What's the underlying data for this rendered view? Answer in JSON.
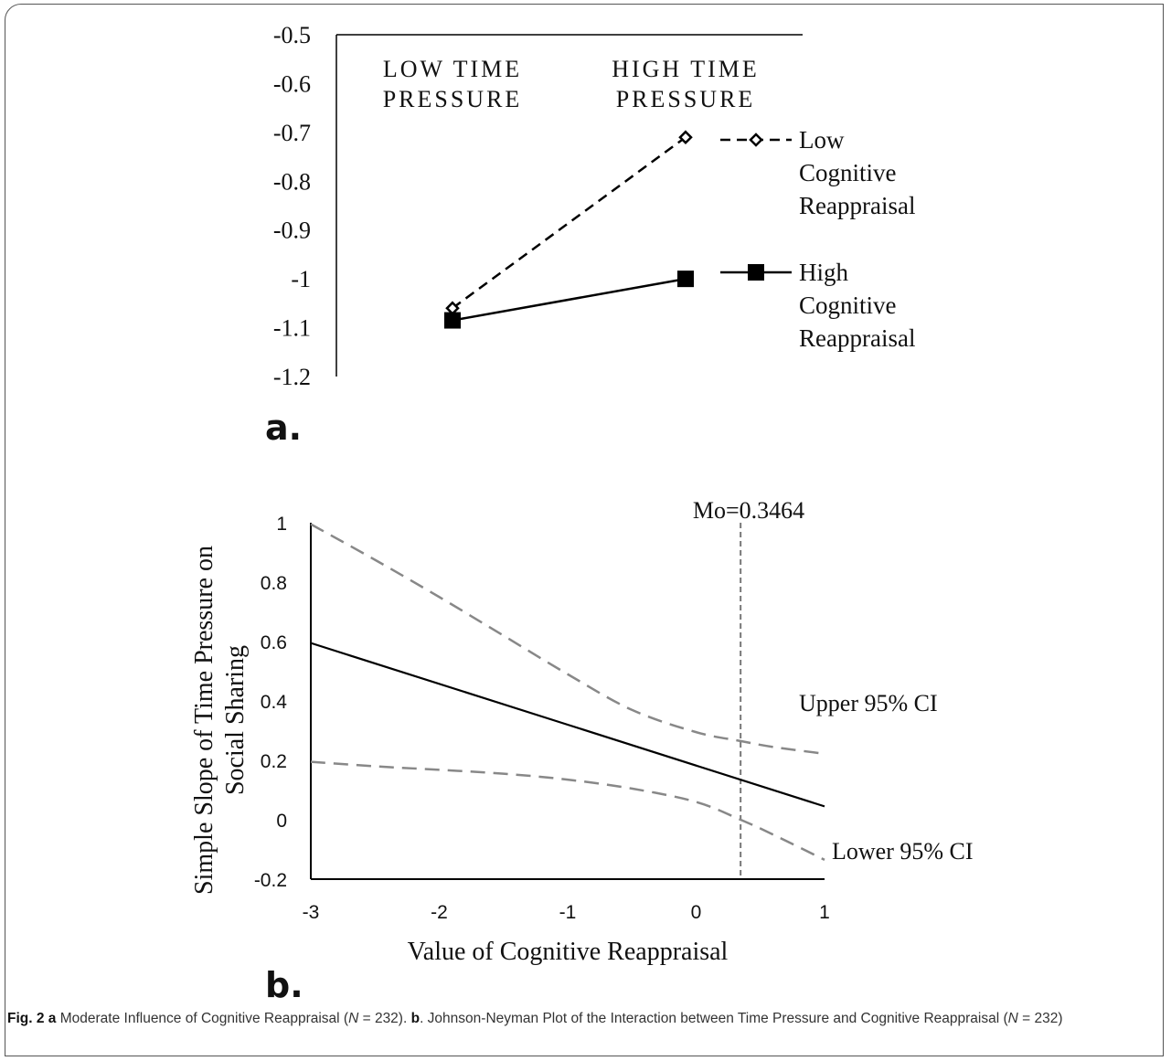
{
  "panels": {
    "a": "a.",
    "b": "b."
  },
  "caption": {
    "fig_label": "Fig. 2",
    "a_letter": "a",
    "a_text": " Moderate Influence of Cognitive Reappraisal (",
    "n_italic": "N",
    "n_value": " = 232). ",
    "b_letter": "b",
    "b_text": ". Johnson-Neyman Plot of the Interaction between Time Pressure and Cognitive Reappraisal (",
    "n_italic_2": "N",
    "n_value_2": " = 232)"
  },
  "chart_data": [
    {
      "type": "line",
      "panel": "a",
      "categories": [
        "LOW TIME PRESSURE",
        "HIGH TIME PRESSURE"
      ],
      "category_lines": [
        [
          "LOW TIME",
          "PRESSURE"
        ],
        [
          "HIGH TIME",
          "PRESSURE"
        ]
      ],
      "yticks": [
        "-0.5",
        "-0.6",
        "-0.7",
        "-0.8",
        "-0.9",
        "-1",
        "-1.1",
        "-1.2"
      ],
      "ylim": [
        -1.2,
        -0.5
      ],
      "y_inverted": true,
      "series": [
        {
          "name": "Low Cognitive Reappraisal",
          "name_lines": [
            "Low",
            "Cognitive",
            "Reappraisal"
          ],
          "values": [
            -1.06,
            -0.71
          ],
          "style": "dashed",
          "marker": "open-diamond",
          "color": "#000000"
        },
        {
          "name": "High Cognitive Reappraisal",
          "name_lines": [
            "High",
            "Cognitive",
            "Reappraisal"
          ],
          "values": [
            -1.085,
            -1.0
          ],
          "style": "solid",
          "marker": "filled-square",
          "color": "#000000"
        }
      ],
      "legend": "right"
    },
    {
      "type": "line",
      "panel": "b",
      "xlabel": "Value of Cognitive Reappraisal",
      "ylabel_lines": [
        "Simple Slope of Time Pressure on",
        "Social Sharing"
      ],
      "xticks": [
        "-3",
        "-2",
        "-1",
        "0",
        "1"
      ],
      "yticks": [
        "1",
        "0.8",
        "0.6",
        "0.4",
        "0.2",
        "0",
        "-0.2"
      ],
      "xlim": [
        -3,
        1
      ],
      "ylim": [
        -0.2,
        1
      ],
      "series": [
        {
          "name": "Simple Slope",
          "x": [
            -3,
            1
          ],
          "y": [
            0.595,
            0.045
          ],
          "style": "solid",
          "color": "#000000"
        },
        {
          "name": "Upper 95% CI",
          "x": [
            -3,
            -2.5,
            -2,
            -1.5,
            -1,
            -0.5,
            0,
            0.3464,
            0.6,
            1
          ],
          "y": [
            0.995,
            0.875,
            0.75,
            0.62,
            0.49,
            0.37,
            0.295,
            0.265,
            0.245,
            0.222
          ],
          "style": "dashed",
          "color": "#888888"
        },
        {
          "name": "Lower 95% CI",
          "x": [
            -3,
            -2.5,
            -2,
            -1.5,
            -1,
            -0.5,
            0,
            0.3464,
            0.6,
            1
          ],
          "y": [
            0.195,
            0.18,
            0.168,
            0.155,
            0.135,
            0.105,
            0.06,
            0.0,
            -0.05,
            -0.135
          ],
          "style": "dashed",
          "color": "#888888"
        }
      ],
      "vline": {
        "x": 0.3464,
        "label": "Mo=0.3464"
      },
      "annotations": {
        "upper": "Upper  95% CI",
        "lower": "Lower  95% CI"
      }
    }
  ]
}
